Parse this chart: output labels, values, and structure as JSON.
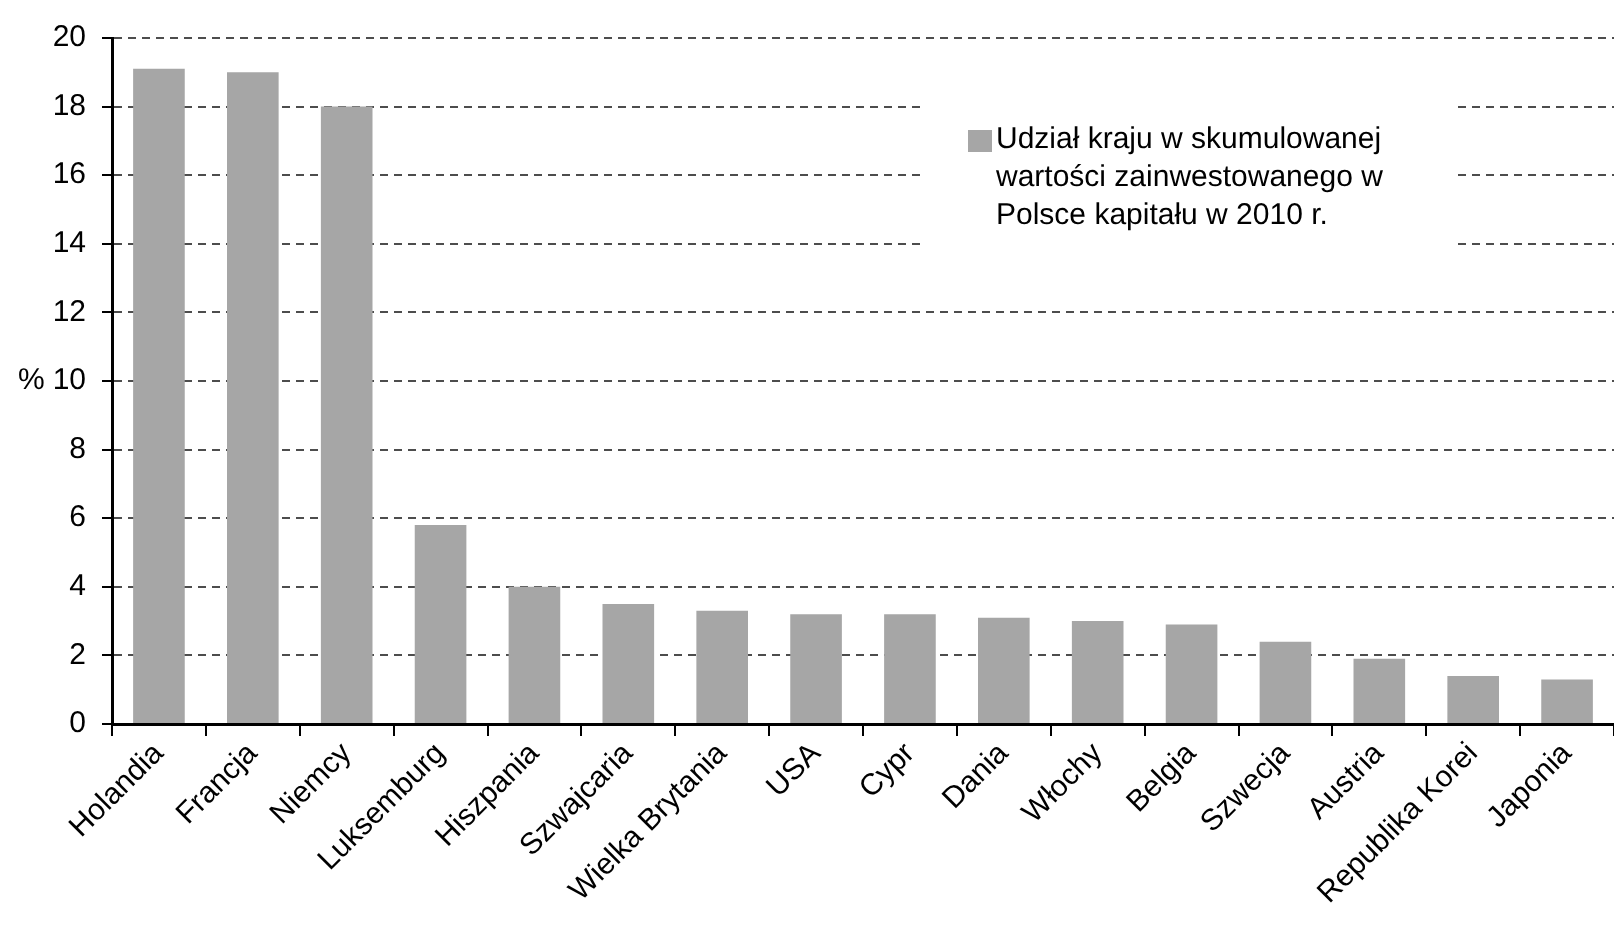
{
  "chart_data": {
    "type": "bar",
    "ylabel": "%",
    "categories": [
      "Holandia",
      "Francja",
      "Niemcy",
      "Luksemburg",
      "Hiszpania",
      "Szwajcaria",
      "Wielka Brytania",
      "USA",
      "Cypr",
      "Dania",
      "Włochy",
      "Belgia",
      "Szwecja",
      "Austria",
      "Republika Korei",
      "Japonia"
    ],
    "series": [
      {
        "name": "Udział kraju w skumulowanej wartości zainwestowanego w Polsce kapitału w 2010 r.",
        "color": "#a6a6a6",
        "values": [
          19.1,
          19.0,
          18.0,
          5.8,
          4.0,
          3.5,
          3.3,
          3.2,
          3.2,
          3.1,
          3.0,
          2.9,
          2.4,
          1.9,
          1.4,
          1.3
        ]
      }
    ],
    "ylim": [
      0,
      20
    ],
    "yticks": [
      0,
      2,
      4,
      6,
      8,
      10,
      12,
      14,
      16,
      18,
      20
    ],
    "grid": "y",
    "legend": "top right"
  }
}
